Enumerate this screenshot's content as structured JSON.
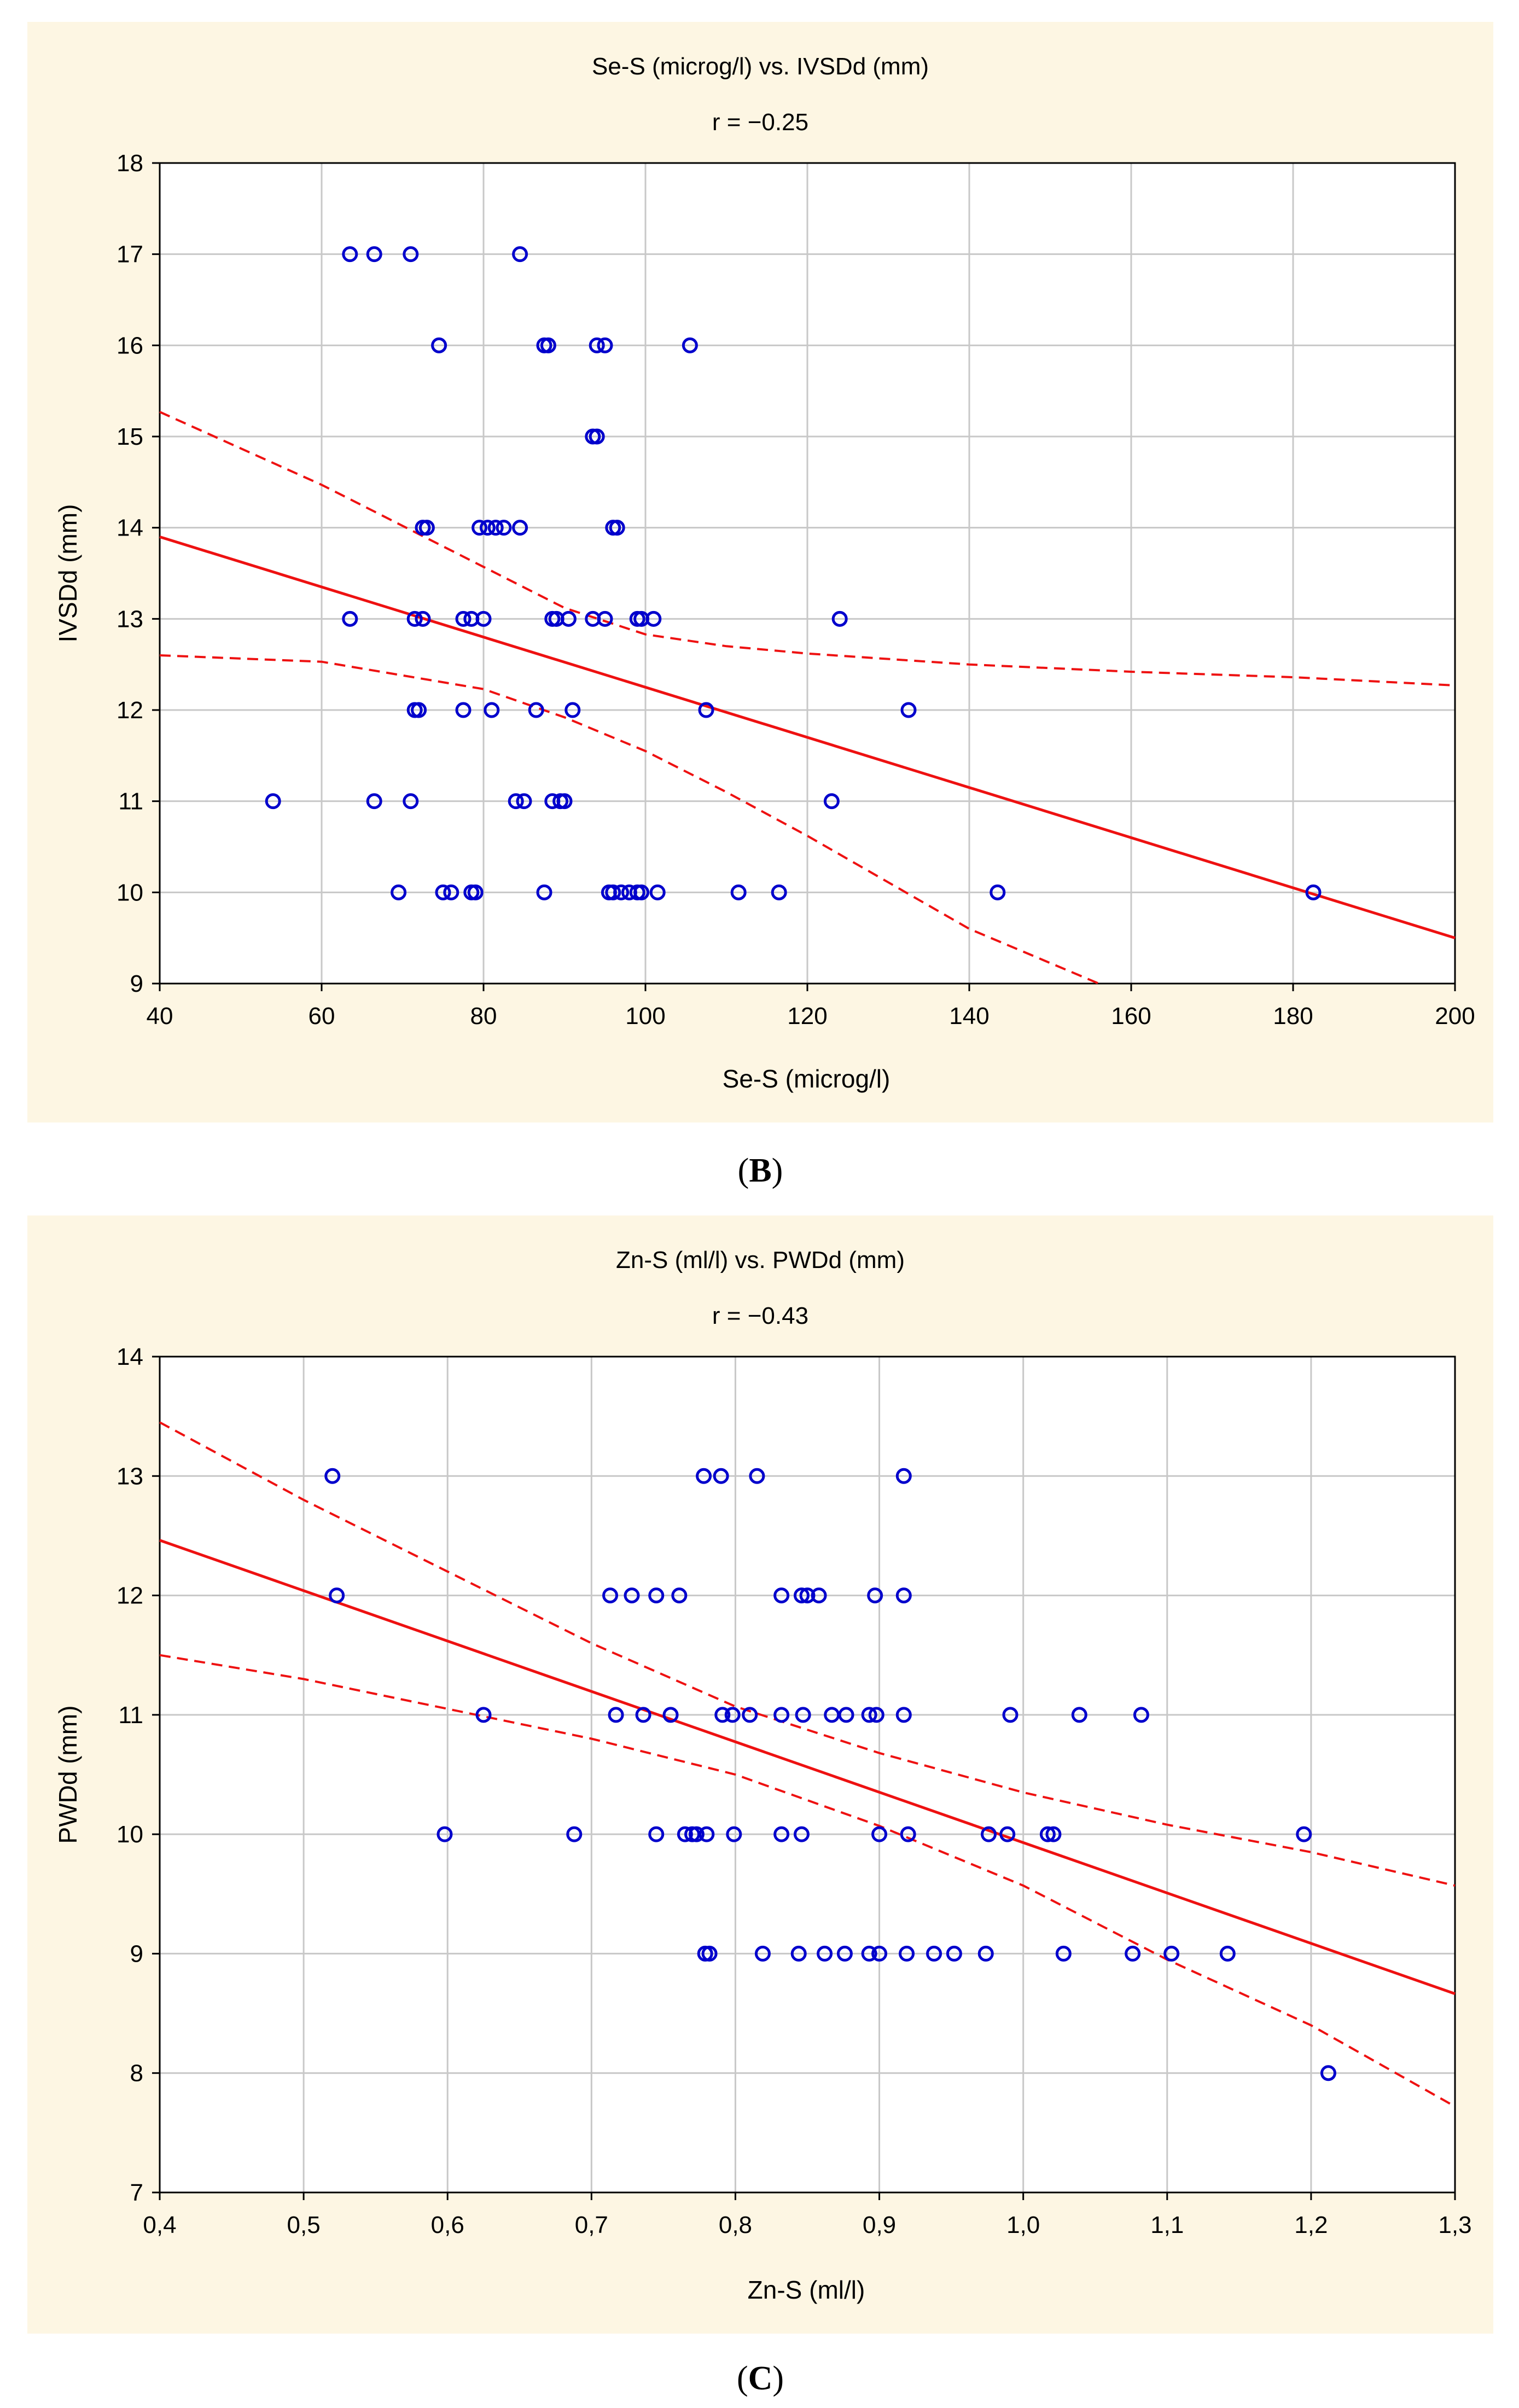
{
  "chart_data": [
    {
      "type": "scatter",
      "panel_label_open": "(",
      "panel_label_letter": "B",
      "panel_label_close": ")",
      "title": "Se-S (microg/l) vs. IVSDd (mm)",
      "subtitle": "r = −0.25",
      "xlabel": "Se-S (microg/l)",
      "ylabel": "IVSDd (mm)",
      "xlim": [
        40,
        200
      ],
      "ylim": [
        9,
        18
      ],
      "xticks": [
        40,
        60,
        80,
        100,
        120,
        140,
        160,
        180,
        200
      ],
      "yticks": [
        9,
        10,
        11,
        12,
        13,
        14,
        15,
        16,
        17,
        18
      ],
      "xtick_labels": [
        "40",
        "60",
        "80",
        "100",
        "120",
        "140",
        "160",
        "180",
        "200"
      ],
      "ytick_labels": [
        "9",
        "10",
        "11",
        "12",
        "13",
        "14",
        "15",
        "16",
        "17",
        "18"
      ],
      "points": [
        [
          63.5,
          17
        ],
        [
          66.5,
          17
        ],
        [
          71,
          17
        ],
        [
          84.5,
          17
        ],
        [
          74.5,
          16
        ],
        [
          87.5,
          16
        ],
        [
          88,
          16
        ],
        [
          94,
          16
        ],
        [
          95,
          16
        ],
        [
          105.5,
          16
        ],
        [
          93.5,
          15
        ],
        [
          94,
          15
        ],
        [
          72.5,
          14
        ],
        [
          73,
          14
        ],
        [
          79.5,
          14
        ],
        [
          80.5,
          14
        ],
        [
          81.5,
          14
        ],
        [
          82.5,
          14
        ],
        [
          84.5,
          14
        ],
        [
          96,
          14
        ],
        [
          96.5,
          14
        ],
        [
          63.5,
          13
        ],
        [
          71.5,
          13
        ],
        [
          72.5,
          13
        ],
        [
          77.5,
          13
        ],
        [
          78.5,
          13
        ],
        [
          80,
          13
        ],
        [
          88.5,
          13
        ],
        [
          89,
          13
        ],
        [
          90.5,
          13
        ],
        [
          93.5,
          13
        ],
        [
          95,
          13
        ],
        [
          99,
          13
        ],
        [
          99.5,
          13
        ],
        [
          101,
          13
        ],
        [
          124,
          13
        ],
        [
          71.5,
          12
        ],
        [
          72,
          12
        ],
        [
          77.5,
          12
        ],
        [
          81,
          12
        ],
        [
          86.5,
          12
        ],
        [
          91,
          12
        ],
        [
          107.5,
          12
        ],
        [
          132.5,
          12
        ],
        [
          54,
          11
        ],
        [
          66.5,
          11
        ],
        [
          71,
          11
        ],
        [
          84,
          11
        ],
        [
          85,
          11
        ],
        [
          88.5,
          11
        ],
        [
          89.5,
          11
        ],
        [
          90,
          11
        ],
        [
          123,
          11
        ],
        [
          69.5,
          10
        ],
        [
          75,
          10
        ],
        [
          76,
          10
        ],
        [
          78.5,
          10
        ],
        [
          79,
          10
        ],
        [
          87.5,
          10
        ],
        [
          95.5,
          10
        ],
        [
          96,
          10
        ],
        [
          97,
          10
        ],
        [
          98,
          10
        ],
        [
          99,
          10
        ],
        [
          99.5,
          10
        ],
        [
          101.5,
          10
        ],
        [
          111.5,
          10
        ],
        [
          116.5,
          10
        ],
        [
          143.5,
          10
        ],
        [
          182.5,
          10
        ]
      ],
      "regression": {
        "slope": -0.0275,
        "intercept": 15.0
      },
      "ci_upper": [
        [
          40,
          15.27
        ],
        [
          60,
          14.47
        ],
        [
          80,
          13.57
        ],
        [
          90,
          13.12
        ],
        [
          100,
          12.83
        ],
        [
          110,
          12.7
        ],
        [
          120,
          12.62
        ],
        [
          140,
          12.5
        ],
        [
          160,
          12.42
        ],
        [
          180,
          12.36
        ],
        [
          200,
          12.27
        ]
      ],
      "ci_lower": [
        [
          40,
          12.6
        ],
        [
          60,
          12.53
        ],
        [
          80,
          12.23
        ],
        [
          90,
          11.92
        ],
        [
          100,
          11.55
        ],
        [
          110,
          11.1
        ],
        [
          120,
          10.62
        ],
        [
          140,
          9.6
        ],
        [
          156,
          9.0
        ]
      ],
      "colors": {
        "points": "#0000cc",
        "fit": "#ee1111",
        "ci": "#ee1111",
        "grid": "#c8c8c8",
        "background": "#fdf6e3"
      }
    },
    {
      "type": "scatter",
      "panel_label_open": "(",
      "panel_label_letter": "C",
      "panel_label_close": ")",
      "title": "Zn-S (ml/l) vs. PWDd (mm)",
      "subtitle": "r = −0.43",
      "xlabel": "Zn-S (ml/l)",
      "ylabel": "PWDd (mm)",
      "xlim": [
        0.4,
        1.3
      ],
      "ylim": [
        7,
        14
      ],
      "xticks": [
        0.4,
        0.5,
        0.6,
        0.7,
        0.8,
        0.9,
        1.0,
        1.1,
        1.2,
        1.3
      ],
      "yticks": [
        7,
        8,
        9,
        10,
        11,
        12,
        13,
        14
      ],
      "xtick_labels": [
        "0,4",
        "0,5",
        "0,6",
        "0,7",
        "0,8",
        "0,9",
        "1,0",
        "1,1",
        "1,2",
        "1,3"
      ],
      "ytick_labels": [
        "7",
        "8",
        "9",
        "10",
        "11",
        "12",
        "13",
        "14"
      ],
      "points": [
        [
          0.52,
          13
        ],
        [
          0.778,
          13
        ],
        [
          0.79,
          13
        ],
        [
          0.815,
          13
        ],
        [
          0.917,
          13
        ],
        [
          0.523,
          12
        ],
        [
          0.713,
          12
        ],
        [
          0.728,
          12
        ],
        [
          0.745,
          12
        ],
        [
          0.761,
          12
        ],
        [
          0.832,
          12
        ],
        [
          0.846,
          12
        ],
        [
          0.85,
          12
        ],
        [
          0.858,
          12
        ],
        [
          0.897,
          12
        ],
        [
          0.917,
          12
        ],
        [
          0.625,
          11
        ],
        [
          0.717,
          11
        ],
        [
          0.736,
          11
        ],
        [
          0.755,
          11
        ],
        [
          0.791,
          11
        ],
        [
          0.798,
          11
        ],
        [
          0.81,
          11
        ],
        [
          0.832,
          11
        ],
        [
          0.847,
          11
        ],
        [
          0.867,
          11
        ],
        [
          0.877,
          11
        ],
        [
          0.893,
          11
        ],
        [
          0.898,
          11
        ],
        [
          0.917,
          11
        ],
        [
          0.991,
          11
        ],
        [
          1.039,
          11
        ],
        [
          1.082,
          11
        ],
        [
          0.598,
          10
        ],
        [
          0.688,
          10
        ],
        [
          0.745,
          10
        ],
        [
          0.765,
          10
        ],
        [
          0.77,
          10
        ],
        [
          0.773,
          10
        ],
        [
          0.78,
          10
        ],
        [
          0.799,
          10
        ],
        [
          0.832,
          10
        ],
        [
          0.846,
          10
        ],
        [
          0.9,
          10
        ],
        [
          0.92,
          10
        ],
        [
          0.976,
          10
        ],
        [
          0.989,
          10
        ],
        [
          1.017,
          10
        ],
        [
          1.021,
          10
        ],
        [
          1.195,
          10
        ],
        [
          0.779,
          9
        ],
        [
          0.782,
          9
        ],
        [
          0.819,
          9
        ],
        [
          0.844,
          9
        ],
        [
          0.862,
          9
        ],
        [
          0.876,
          9
        ],
        [
          0.893,
          9
        ],
        [
          0.9,
          9
        ],
        [
          0.919,
          9
        ],
        [
          0.938,
          9
        ],
        [
          0.952,
          9
        ],
        [
          0.974,
          9
        ],
        [
          1.028,
          9
        ],
        [
          1.076,
          9
        ],
        [
          1.103,
          9
        ],
        [
          1.142,
          9
        ],
        [
          1.212,
          8
        ]
      ],
      "regression": {
        "slope": -4.22,
        "intercept": 14.15
      },
      "ci_upper": [
        [
          0.4,
          13.45
        ],
        [
          0.5,
          12.8
        ],
        [
          0.6,
          12.2
        ],
        [
          0.7,
          11.6
        ],
        [
          0.8,
          11.07
        ],
        [
          0.9,
          10.68
        ],
        [
          1.0,
          10.35
        ],
        [
          1.1,
          10.08
        ],
        [
          1.2,
          9.85
        ],
        [
          1.3,
          9.57
        ]
      ],
      "ci_lower": [
        [
          0.4,
          11.5
        ],
        [
          0.5,
          11.3
        ],
        [
          0.6,
          11.05
        ],
        [
          0.7,
          10.8
        ],
        [
          0.8,
          10.5
        ],
        [
          0.9,
          10.07
        ],
        [
          1.0,
          9.57
        ],
        [
          1.1,
          8.95
        ],
        [
          1.2,
          8.4
        ],
        [
          1.3,
          7.72
        ]
      ],
      "colors": {
        "points": "#0000cc",
        "fit": "#ee1111",
        "ci": "#ee1111",
        "grid": "#c8c8c8",
        "background": "#fdf6e3"
      }
    }
  ]
}
